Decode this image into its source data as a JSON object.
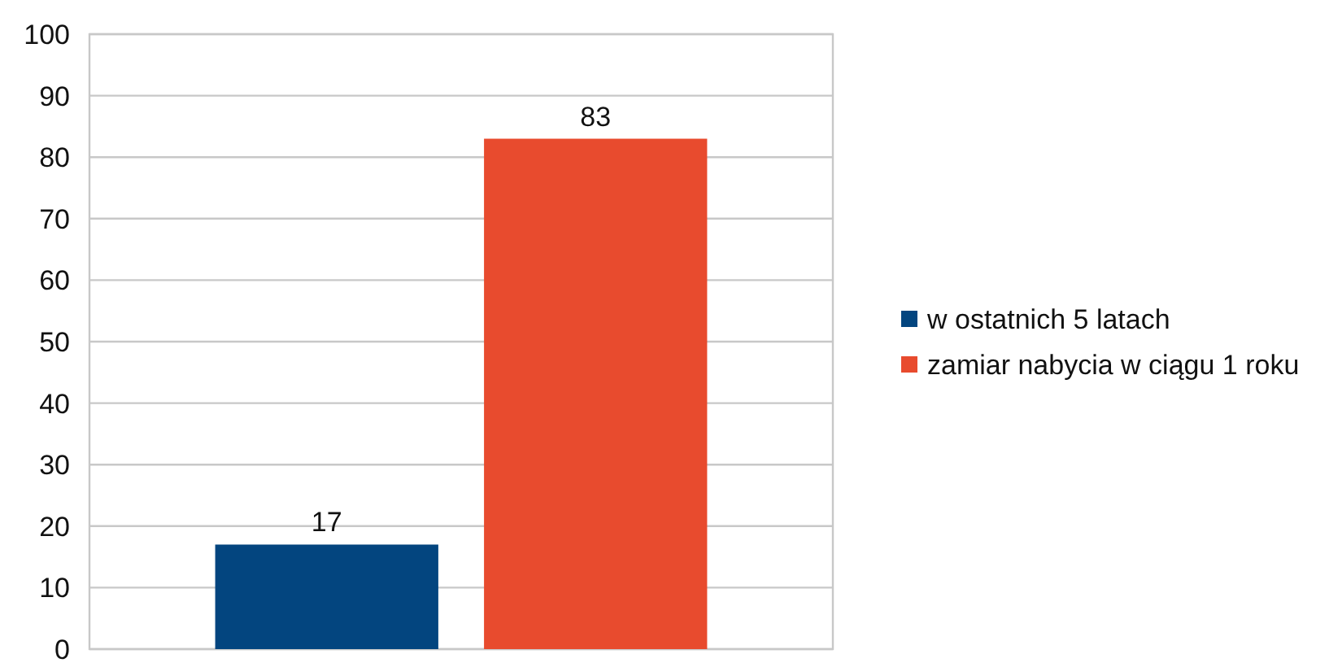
{
  "chart_data": {
    "type": "bar",
    "categories": [
      null
    ],
    "series": [
      {
        "name": "w ostatnich 5 latach",
        "color": "#03457f",
        "values": [
          17
        ]
      },
      {
        "name": "zamiar nabycia w ciągu 1 roku",
        "color": "#e84b2e",
        "values": [
          83
        ]
      }
    ],
    "ylim": [
      0,
      100
    ],
    "yticks": [
      0,
      10,
      20,
      30,
      40,
      50,
      60,
      70,
      80,
      90,
      100
    ],
    "grid": "y",
    "legend": "right",
    "data_labels": true
  }
}
